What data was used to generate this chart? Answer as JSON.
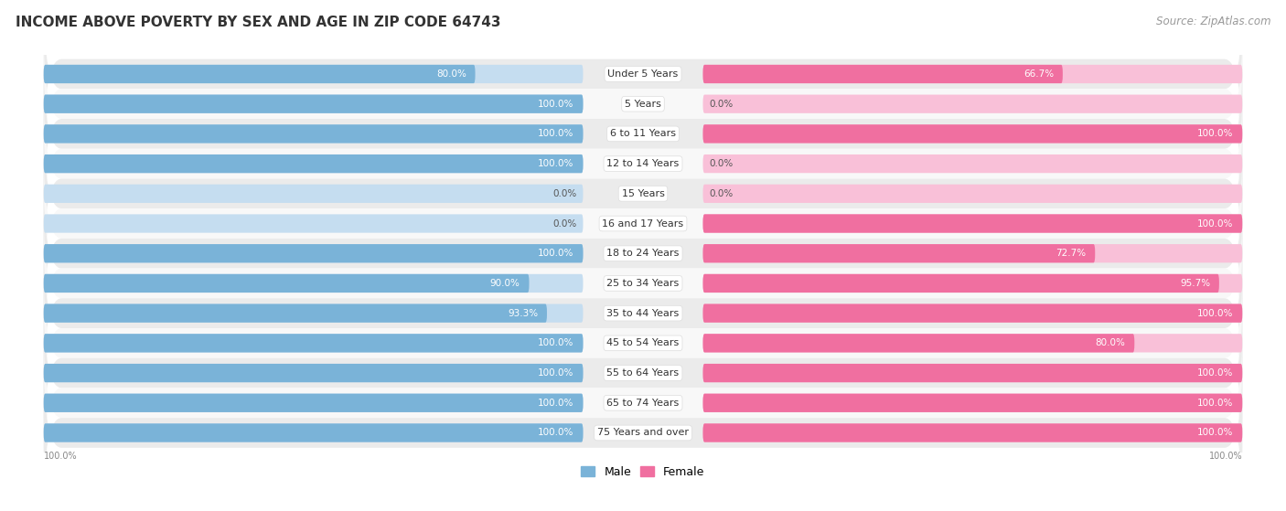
{
  "title": "INCOME ABOVE POVERTY BY SEX AND AGE IN ZIP CODE 64743",
  "source": "Source: ZipAtlas.com",
  "categories": [
    "Under 5 Years",
    "5 Years",
    "6 to 11 Years",
    "12 to 14 Years",
    "15 Years",
    "16 and 17 Years",
    "18 to 24 Years",
    "25 to 34 Years",
    "35 to 44 Years",
    "45 to 54 Years",
    "55 to 64 Years",
    "65 to 74 Years",
    "75 Years and over"
  ],
  "male_values": [
    80.0,
    100.0,
    100.0,
    100.0,
    0.0,
    0.0,
    100.0,
    90.0,
    93.3,
    100.0,
    100.0,
    100.0,
    100.0
  ],
  "female_values": [
    66.7,
    0.0,
    100.0,
    0.0,
    0.0,
    100.0,
    72.7,
    95.7,
    100.0,
    80.0,
    100.0,
    100.0,
    100.0
  ],
  "male_color": "#7ab3d8",
  "female_color": "#f06fa0",
  "male_light_color": "#c5ddf0",
  "female_light_color": "#f9c0d8",
  "male_label": "Male",
  "female_label": "Female",
  "title_fontsize": 11,
  "source_fontsize": 8.5,
  "label_fontsize": 8,
  "value_fontsize": 7.5,
  "row_bg_even": "#ebebeb",
  "row_bg_odd": "#f8f8f8"
}
